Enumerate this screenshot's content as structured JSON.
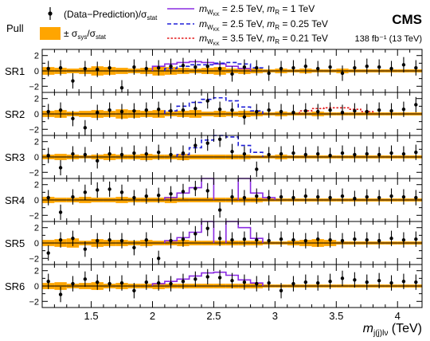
{
  "chart_data": {
    "type": "line",
    "title": "",
    "experiment": "CMS",
    "lumi": "138 fb⁻¹ (13 TeV)",
    "ylabel": "Pull",
    "xlabel": "m_{j(j)lν} (TeV)",
    "xlim": [
      1.1,
      4.2
    ],
    "ylim": [
      -2.8,
      2.8
    ],
    "xticks": [
      1.5,
      2,
      2.5,
      3,
      3.5,
      4
    ],
    "xtick_labels": [
      "1.5",
      "2",
      "2.5",
      "3",
      "3.5",
      "4"
    ],
    "yticks": [
      -2,
      0,
      2
    ],
    "ytick_labels": [
      "−2",
      "0",
      "2"
    ],
    "legend": {
      "placement": "top",
      "entries": [
        {
          "key": "pull",
          "text": "(Data−Prediction)/σ_stat"
        },
        {
          "key": "band",
          "text": "± σ_sys/σ_stat"
        },
        {
          "key": "sig1",
          "text": "m_{W_KK} = 2.5 TeV, m_R = 1     TeV"
        },
        {
          "key": "sig2",
          "text": "m_{W_KK} = 2.5 TeV, m_R = 0.25 TeV"
        },
        {
          "key": "sig3",
          "text": "m_{W_KK} = 3.5 TeV, m_R = 0.21 TeV"
        }
      ]
    },
    "colors": {
      "points": "#000000",
      "band": "#ffa500",
      "sig1": "#8a2be2",
      "sig2": "#1f1fd8",
      "sig3": "#e41a1c",
      "zero_line": "#000000"
    },
    "bin_edges": [
      1.1,
      1.2,
      1.3,
      1.4,
      1.5,
      1.6,
      1.7,
      1.8,
      1.9,
      2.0,
      2.1,
      2.2,
      2.3,
      2.4,
      2.5,
      2.6,
      2.7,
      2.8,
      2.9,
      3.0,
      3.1,
      3.2,
      3.3,
      3.4,
      3.5,
      3.6,
      3.7,
      3.8,
      3.9,
      4.0,
      4.1,
      4.2
    ],
    "panels": [
      {
        "label": "SR1",
        "pulls": [
          0.3,
          0.4,
          -1.3,
          0.3,
          0.2,
          0.4,
          -2.2,
          0.5,
          0.3,
          0.4,
          0.6,
          0.7,
          0.5,
          0.6,
          0.3,
          -0.4,
          0.5,
          0.4,
          -0.3,
          0.3,
          0.4,
          0.6,
          0.3,
          0.5,
          -0.3,
          0.4,
          0.6,
          0.5,
          0.3,
          0.8,
          0.4
        ],
        "band": [
          0.5,
          0.4,
          0.3,
          0.4,
          0.6,
          0.5,
          0.4,
          0.3,
          0.4,
          0.6,
          0.5,
          0.4,
          0.3,
          0.4,
          0.5,
          0.3,
          0.4,
          0.3,
          0.2,
          0.3,
          0.2,
          0.3,
          0.2,
          0.2,
          0.3,
          0.2,
          0.2,
          0.2,
          0.2,
          0.2,
          0.2
        ],
        "signals": [
          {
            "key": "sig1",
            "bins": [
              [
                2.0,
                2.1,
                0.6
              ],
              [
                2.1,
                2.2,
                0.9
              ],
              [
                2.2,
                2.3,
                1.1
              ],
              [
                2.3,
                2.4,
                1.2
              ],
              [
                2.4,
                2.5,
                1.1
              ],
              [
                2.5,
                2.6,
                0.9
              ],
              [
                2.6,
                2.7,
                0.6
              ],
              [
                2.7,
                2.8,
                0.3
              ]
            ]
          },
          {
            "key": "sig2",
            "bins": [
              [
                2.1,
                2.2,
                0.3
              ],
              [
                2.2,
                2.3,
                0.6
              ],
              [
                2.3,
                2.4,
                0.8
              ],
              [
                2.4,
                2.5,
                0.8
              ],
              [
                2.5,
                2.6,
                1.0
              ],
              [
                2.6,
                2.7,
                1.1
              ],
              [
                2.7,
                2.8,
                0.9
              ],
              [
                2.8,
                2.9,
                0.4
              ]
            ]
          }
        ]
      },
      {
        "label": "SR2",
        "pulls": [
          0.3,
          0.5,
          -0.6,
          -1.8,
          0.2,
          0.5,
          0.3,
          0.4,
          0.5,
          0.6,
          0.4,
          0.5,
          0.7,
          1.7,
          0.6,
          0.5,
          -0.4,
          0.3,
          0.5,
          0.3,
          0.2,
          0.4,
          0.3,
          0.5,
          0.2,
          0.4,
          0.3,
          0.5,
          0.4,
          0.6,
          1.2
        ],
        "band": [
          0.4,
          0.5,
          0.3,
          0.4,
          0.5,
          0.4,
          0.6,
          0.5,
          0.4,
          0.5,
          0.3,
          0.4,
          0.5,
          0.3,
          0.4,
          0.3,
          0.4,
          0.3,
          0.2,
          0.3,
          0.2,
          0.2,
          0.3,
          0.2,
          0.2,
          0.2,
          0.2,
          0.2,
          0.2,
          0.2,
          0.2
        ],
        "signals": [
          {
            "key": "sig2",
            "bins": [
              [
                2.1,
                2.2,
                0.4
              ],
              [
                2.2,
                2.3,
                1.0
              ],
              [
                2.3,
                2.4,
                1.5
              ],
              [
                2.4,
                2.5,
                1.9
              ],
              [
                2.5,
                2.6,
                2.1
              ],
              [
                2.6,
                2.7,
                1.7
              ],
              [
                2.7,
                2.8,
                0.9
              ],
              [
                2.8,
                2.9,
                0.4
              ]
            ]
          },
          {
            "key": "sig3",
            "bins": [
              [
                3.2,
                3.3,
                0.4
              ],
              [
                3.3,
                3.4,
                0.7
              ],
              [
                3.4,
                3.5,
                0.8
              ],
              [
                3.5,
                3.6,
                0.8
              ],
              [
                3.6,
                3.7,
                0.6
              ],
              [
                3.7,
                3.8,
                0.3
              ]
            ]
          }
        ]
      },
      {
        "label": "SR3",
        "pulls": [
          0.2,
          -1.4,
          0.4,
          0.3,
          -0.5,
          0.4,
          0.3,
          0.5,
          0.4,
          0.6,
          0.3,
          0.5,
          1.5,
          1.8,
          2.3,
          0.7,
          0.4,
          -1.6,
          0.3,
          0.4,
          0.5,
          0.3,
          0.4,
          0.2,
          0.5,
          0.3,
          0.4,
          0.3,
          0.5,
          0.4,
          0.6
        ],
        "band": [
          0.3,
          0.4,
          0.3,
          0.2,
          0.3,
          0.4,
          0.3,
          0.3,
          0.4,
          0.3,
          0.3,
          0.4,
          0.3,
          0.3,
          0.3,
          0.3,
          0.3,
          0.2,
          0.2,
          0.3,
          0.2,
          0.2,
          0.2,
          0.2,
          0.2,
          0.2,
          0.2,
          0.2,
          0.2,
          0.2,
          0.2
        ],
        "signals": [
          {
            "key": "sig2",
            "bins": [
              [
                2.2,
                2.3,
                0.3
              ],
              [
                2.3,
                2.4,
                1.2
              ],
              [
                2.4,
                2.5,
                2.2
              ],
              [
                2.5,
                2.6,
                2.8
              ],
              [
                2.6,
                2.7,
                2.6
              ],
              [
                2.7,
                2.8,
                1.5
              ],
              [
                2.8,
                2.9,
                0.6
              ]
            ]
          }
        ]
      },
      {
        "label": "SR4",
        "pulls": [
          0.3,
          -1.6,
          0.4,
          1.0,
          1.3,
          1.4,
          1.0,
          0.3,
          0.5,
          0.6,
          0.8,
          1.1,
          1.5,
          1.2,
          -1.3,
          0.4,
          0.3,
          0.5,
          0.3,
          0.4,
          0.3,
          0.5,
          0.4,
          0.3,
          0.5,
          0.2,
          0.4,
          0.3,
          0.5,
          0.4,
          0.3
        ],
        "band": [
          0.4,
          0.3,
          0.3,
          0.4,
          0.3,
          0.3,
          0.4,
          0.3,
          0.3,
          0.3,
          0.4,
          0.3,
          0.3,
          0.3,
          0.3,
          0.3,
          0.3,
          0.3,
          0.2,
          0.2,
          0.2,
          0.2,
          0.2,
          0.2,
          0.2,
          0.2,
          0.2,
          0.2,
          0.2,
          0.2,
          0.2
        ],
        "signals": [
          {
            "key": "sig1",
            "bins": [
              [
                2.1,
                2.2,
                0.3
              ],
              [
                2.2,
                2.3,
                0.9
              ],
              [
                2.3,
                2.4,
                1.6
              ],
              [
                2.4,
                2.5,
                2.8
              ],
              [
                2.7,
                2.8,
                2.8
              ],
              [
                2.8,
                2.9,
                0.9
              ],
              [
                2.9,
                3.0,
                0.3
              ]
            ]
          }
        ]
      },
      {
        "label": "SR5",
        "pulls": [
          -1.3,
          0.4,
          0.6,
          -0.8,
          0.3,
          0.4,
          0.3,
          -0.6,
          0.4,
          -2.0,
          0.3,
          0.5,
          1.2,
          1.9,
          0.6,
          0.4,
          0.5,
          0.4,
          0.3,
          0.5,
          0.4,
          0.3,
          0.5,
          0.4,
          0.3,
          0.5,
          0.4,
          0.3,
          0.6,
          0.4,
          0.5
        ],
        "band": [
          0.4,
          0.5,
          0.6,
          0.3,
          0.5,
          0.4,
          0.4,
          0.3,
          0.4,
          0.3,
          0.3,
          0.4,
          0.3,
          0.3,
          0.3,
          0.3,
          0.3,
          0.3,
          0.2,
          0.2,
          0.3,
          0.4,
          0.5,
          0.4,
          0.2,
          0.2,
          0.2,
          0.2,
          0.2,
          0.2,
          0.2
        ],
        "signals": [
          {
            "key": "sig1",
            "bins": [
              [
                2.1,
                2.2,
                0.3
              ],
              [
                2.2,
                2.3,
                0.7
              ],
              [
                2.3,
                2.4,
                1.4
              ],
              [
                2.4,
                2.5,
                2.8
              ],
              [
                2.6,
                2.7,
                2.8
              ],
              [
                2.7,
                2.8,
                2.0
              ],
              [
                2.8,
                2.9,
                0.6
              ]
            ]
          }
        ]
      },
      {
        "label": "SR6",
        "pulls": [
          0.6,
          -1.1,
          0.3,
          0.9,
          0.5,
          0.3,
          0.4,
          -0.6,
          0.5,
          0.4,
          0.3,
          0.6,
          0.9,
          1.2,
          1.1,
          0.7,
          0.5,
          0.3,
          0.4,
          -0.6,
          0.3,
          0.5,
          0.4,
          0.6,
          1.0,
          0.8,
          0.5,
          0.7,
          0.4,
          0.6,
          0.5
        ],
        "band": [
          0.4,
          0.5,
          0.3,
          0.4,
          0.5,
          0.3,
          0.4,
          0.3,
          0.3,
          0.4,
          0.3,
          0.3,
          0.3,
          0.3,
          0.3,
          0.3,
          0.3,
          0.3,
          0.2,
          0.2,
          0.2,
          0.2,
          0.2,
          0.2,
          0.2,
          0.2,
          0.2,
          0.2,
          0.2,
          0.2,
          0.2
        ],
        "signals": [
          {
            "key": "sig1",
            "bins": [
              [
                2.0,
                2.1,
                0.3
              ],
              [
                2.1,
                2.2,
                0.6
              ],
              [
                2.2,
                2.3,
                0.9
              ],
              [
                2.3,
                2.4,
                1.3
              ],
              [
                2.4,
                2.5,
                1.7
              ],
              [
                2.5,
                2.6,
                1.8
              ],
              [
                2.6,
                2.7,
                1.4
              ],
              [
                2.7,
                2.8,
                0.8
              ],
              [
                2.8,
                2.9,
                0.4
              ]
            ]
          }
        ]
      }
    ]
  }
}
